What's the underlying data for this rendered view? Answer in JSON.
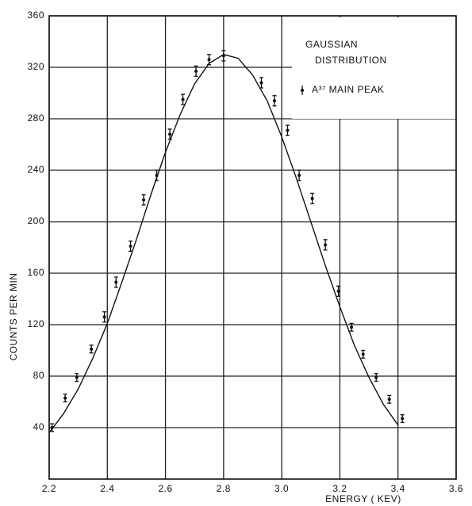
{
  "chart_data": {
    "type": "scatter",
    "x_label": "ENERGY ( KEV)",
    "y_label": "COUNTS PER MIN",
    "xlim": [
      2.2,
      3.6
    ],
    "xticks": [
      2.2,
      2.4,
      2.6,
      2.8,
      {
        "value": 3,
        "label": "3.0"
      },
      3.2,
      3.4,
      3.6
    ],
    "ylim": [
      0,
      360
    ],
    "yticks": [
      40,
      80,
      120,
      160,
      200,
      240,
      280,
      320,
      360
    ],
    "grid": true,
    "legend": "upper right",
    "series": [
      {
        "name": "GAUSSIAN DISTRIBUTION",
        "kind": "line",
        "color": "#111111",
        "x": [
          2.2,
          2.25,
          2.3,
          2.35,
          2.4,
          2.45,
          2.5,
          2.55,
          2.6,
          2.65,
          2.7,
          2.75,
          2.8,
          2.85,
          2.9,
          2.95,
          3.0,
          3.05,
          3.1,
          3.15,
          3.2,
          3.25,
          3.3,
          3.35,
          3.4
        ],
        "values": [
          36,
          51,
          70,
          94,
          121,
          153,
          186,
          221,
          254,
          283,
          307,
          323,
          330,
          327,
          314,
          294,
          266,
          234,
          200,
          166,
          134,
          104,
          79,
          58,
          42
        ]
      },
      {
        "name": "A³⁷ MAIN PEAK",
        "kind": "errorbar",
        "color": "#111111",
        "x": [
          2.21,
          2.255,
          2.295,
          2.345,
          2.39,
          2.43,
          2.48,
          2.525,
          2.57,
          2.615,
          2.66,
          2.705,
          2.75,
          2.8,
          2.93,
          2.975,
          3.02,
          3.06,
          3.105,
          3.15,
          3.195,
          3.24,
          3.28,
          3.325,
          3.37,
          3.415
        ],
        "values": [
          40,
          63,
          79,
          101,
          126,
          153,
          181,
          217,
          236,
          268,
          295,
          317,
          326,
          329,
          308,
          294,
          271,
          236,
          218,
          182,
          146,
          118,
          97,
          79,
          62,
          47
        ],
        "errors": [
          3,
          3,
          3,
          3,
          4,
          4,
          4,
          4,
          4,
          4,
          4,
          4,
          4,
          4,
          4,
          4,
          4,
          4,
          4,
          4,
          4,
          3,
          3,
          3,
          3,
          3
        ]
      }
    ]
  }
}
